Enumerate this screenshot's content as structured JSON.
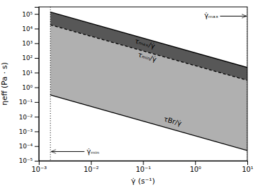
{
  "chart_data": {
    "type": "area",
    "log": true,
    "grid": false,
    "xlabel": "γ̇ (s⁻¹)",
    "ylabel": "ηeff (Pa · s)",
    "x": [
      0.001667,
      10
    ],
    "series": [
      {
        "type": "area",
        "color": "#b0b0b0",
        "values": [
          17996.40071985603,
          3
        ],
        "base": [
          0.2999400119976005,
          5e-05
        ]
      },
      {
        "type": "area",
        "color": "#575757",
        "values": [
          134973.0053989202,
          22.5
        ],
        "base": [
          17996.40071985603,
          3
        ]
      },
      {
        "type": "line",
        "color": "#000000",
        "line_style": "solid",
        "values": [
          134973.0053989202,
          22.5
        ]
      },
      {
        "type": "line",
        "color": "#000000",
        "line_style": "dashed",
        "values": [
          17996.40071985603,
          3
        ]
      },
      {
        "type": "line",
        "color": "#000000",
        "line_style": "solid",
        "values": [
          0.2999400119976005,
          5e-05
        ]
      }
    ],
    "vlines": [
      0.001667,
      10
    ],
    "annotations": [
      "τₘₐₓ/γ̇",
      "τₘᵢₙ/γ̇",
      "τBr/γ̇",
      "γ̇ₘₐₓ",
      "γ̇ₘᵢₙ"
    ],
    "xlim": [
      0.001,
      10
    ],
    "ylim": [
      1e-05,
      300000
    ],
    "xticks": [
      {
        "value": 0.001,
        "label": "10⁻³"
      },
      {
        "value": 0.01,
        "label": "10⁻²"
      },
      {
        "value": 0.1,
        "label": "10⁻¹"
      },
      {
        "value": 1,
        "label": "10⁰"
      },
      {
        "value": 10,
        "label": "10¹"
      }
    ],
    "yticks": [
      {
        "value": 1e-05,
        "label": "10⁻⁵"
      },
      {
        "value": 0.0001,
        "label": "10⁻⁴"
      },
      {
        "value": 0.001,
        "label": "10⁻³"
      },
      {
        "value": 0.01,
        "label": "10⁻²"
      },
      {
        "value": 0.1,
        "label": "10⁻¹"
      },
      {
        "value": 1,
        "label": "10⁰"
      },
      {
        "value": 10,
        "label": "10¹"
      },
      {
        "value": 100,
        "label": "10²"
      },
      {
        "value": 1000,
        "label": "10³"
      },
      {
        "value": 10000,
        "label": "10⁴"
      },
      {
        "value": 100000,
        "label": "10⁵"
      }
    ]
  }
}
